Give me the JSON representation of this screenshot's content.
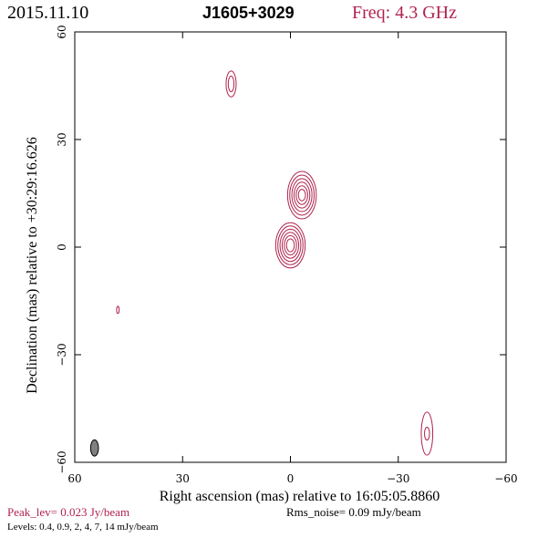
{
  "header": {
    "date": "2015.11.10",
    "source": "J1605+3029",
    "frequency": "Freq: 4.3 GHz"
  },
  "footer": {
    "peak": "Peak_lev=  0.023 Jy/beam",
    "rms": "Rms_noise= 0.09 mJy/beam",
    "levels": "Levels: 0.4,  0.9,    2,    4,    7,   14  mJy/beam"
  },
  "colors": {
    "contour": "#b0234e",
    "beam_fill": "#808080",
    "text_accent": "#b0234e"
  },
  "chart_data": {
    "type": "contour",
    "xlabel": "Right ascension (mas) relative to 16:05:05.8860",
    "ylabel": "Declination (mas) relative to +30:29:16.626",
    "xlim": [
      60,
      -60
    ],
    "ylim": [
      -60,
      60
    ],
    "xticks": [
      60,
      30,
      0,
      -30,
      -60
    ],
    "yticks": [
      60,
      30,
      0,
      -30,
      -60
    ],
    "xtick_labels": [
      "60",
      "30",
      "0",
      "−30",
      "−60"
    ],
    "ytick_labels": [
      "60",
      "30",
      "0",
      "−30",
      "−60"
    ],
    "contour_levels_mJy": [
      0.4,
      0.9,
      2,
      4,
      7,
      14
    ],
    "components": [
      {
        "id": "core",
        "x": 0,
        "y": 0.5,
        "rx": [
          4.1,
          3.5,
          2.9,
          2.3,
          1.7,
          1.1
        ],
        "ry": [
          6.3,
          5.4,
          4.5,
          3.6,
          2.7,
          1.8
        ]
      },
      {
        "id": "jet-knot",
        "x": -3.2,
        "y": 14.5,
        "rx": [
          4.0,
          3.4,
          2.8,
          2.2,
          1.6,
          1.0
        ],
        "ry": [
          6.6,
          5.6,
          4.6,
          3.6,
          2.6,
          1.6
        ]
      },
      {
        "id": "north-feature",
        "x": 16.5,
        "y": 45.5,
        "rx": [
          1.4,
          0.8
        ],
        "ry": [
          3.6,
          2.2
        ]
      },
      {
        "id": "west-feature",
        "x": -38,
        "y": -52,
        "rx": [
          1.6,
          0.7
        ],
        "ry": [
          6.0,
          1.8
        ]
      },
      {
        "id": "east-spot",
        "x": 48,
        "y": -17.5,
        "rx": [
          0.35
        ],
        "ry": [
          1.0
        ]
      }
    ],
    "beam": {
      "x": 54.5,
      "y": -56,
      "major": 4.5,
      "minor": 2.2
    }
  }
}
